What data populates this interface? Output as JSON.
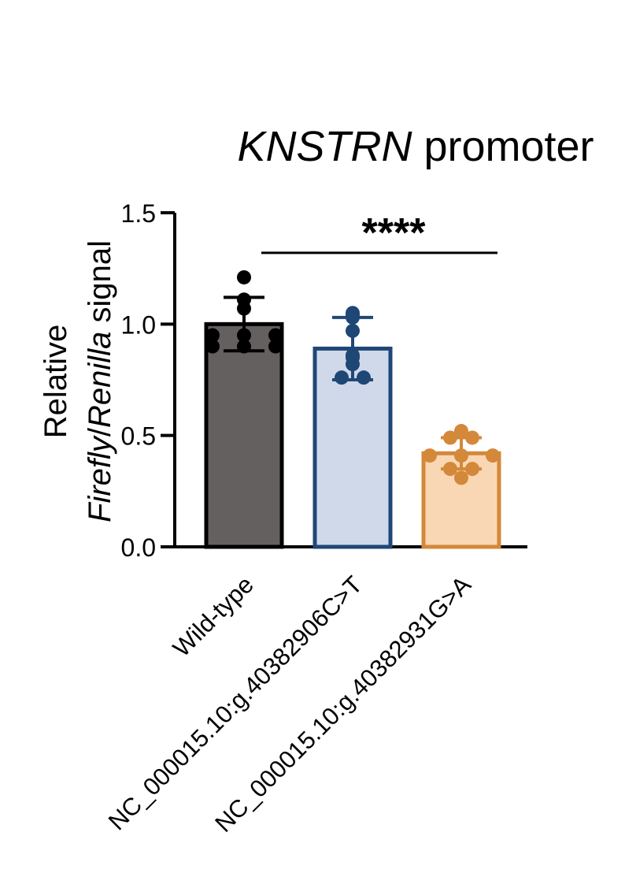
{
  "chart_data": {
    "type": "bar",
    "title": {
      "italic": "KNSTRN",
      "rest": " promoter"
    },
    "ylabel": {
      "line1": "Relative",
      "italic1": "Firefly",
      "slash": "/",
      "italic2": "Renilla",
      "rest": " signal"
    },
    "ylim": [
      0,
      1.5
    ],
    "yticks": [
      {
        "value": 0.0,
        "label": "0.0"
      },
      {
        "value": 0.5,
        "label": "0.5"
      },
      {
        "value": 1.0,
        "label": "1.0"
      },
      {
        "value": 1.5,
        "label": "1.5"
      }
    ],
    "categories": [
      "Wild-type",
      "NC_000015.10:g.40382906C>T",
      "NC_000015.10:g.40382931G>A"
    ],
    "series": [
      {
        "values": [
          1.0,
          0.89,
          0.42
        ],
        "sd": [
          0.12,
          0.14,
          0.07
        ],
        "fill_colors": [
          "#646060",
          "#cfd9ea",
          "#f9d7b4"
        ],
        "stroke_colors": [
          "#000000",
          "#1f4776",
          "#d4883a"
        ],
        "points": [
          [
            1.21,
            1.11,
            1.07,
            0.95,
            0.95,
            0.95,
            0.9,
            0.9,
            0.9
          ],
          [
            1.04,
            1.03,
            1.05,
            0.97,
            0.85,
            0.82,
            0.86,
            0.76,
            0.76
          ],
          [
            0.52,
            0.49,
            0.49,
            0.41,
            0.41,
            0.41,
            0.35,
            0.35,
            0.31
          ]
        ]
      }
    ],
    "significance": {
      "label": "****",
      "from_category": 0,
      "to_category": 2,
      "y": 1.32
    },
    "grid": false,
    "legend": "none"
  }
}
